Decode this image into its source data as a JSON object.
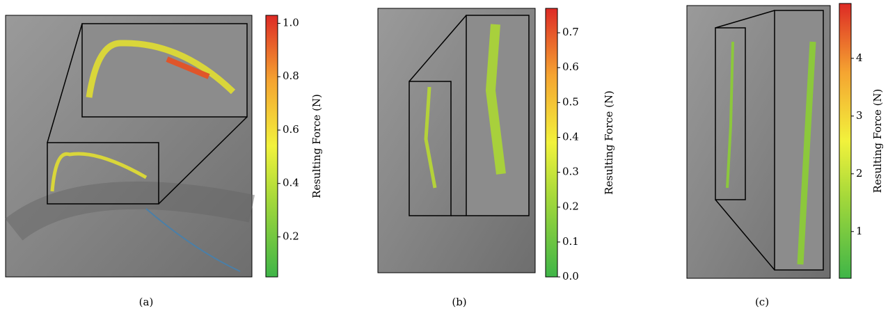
{
  "panels": [
    {
      "caption": "(a)",
      "colorbar": {
        "label": "Resulting Force (N)",
        "lim": [
          0.05,
          1.03
        ],
        "ticks": [
          0.2,
          0.4,
          0.6,
          0.8,
          {
            "value": 1.0,
            "label": "1.0"
          }
        ]
      }
    },
    {
      "caption": "(b)",
      "colorbar": {
        "label": "Resulting Force (N)",
        "lim": [
          0,
          0.77
        ],
        "ticks": [
          {
            "value": 0,
            "label": "0.0"
          },
          0.1,
          0.2,
          0.3,
          0.4,
          0.5,
          0.6,
          0.7
        ]
      }
    },
    {
      "caption": "(c)",
      "colorbar": {
        "label": "Resulting Force (N)",
        "lim": [
          0.19,
          4.95
        ],
        "ticks": [
          1,
          2,
          3,
          4
        ]
      }
    }
  ]
}
